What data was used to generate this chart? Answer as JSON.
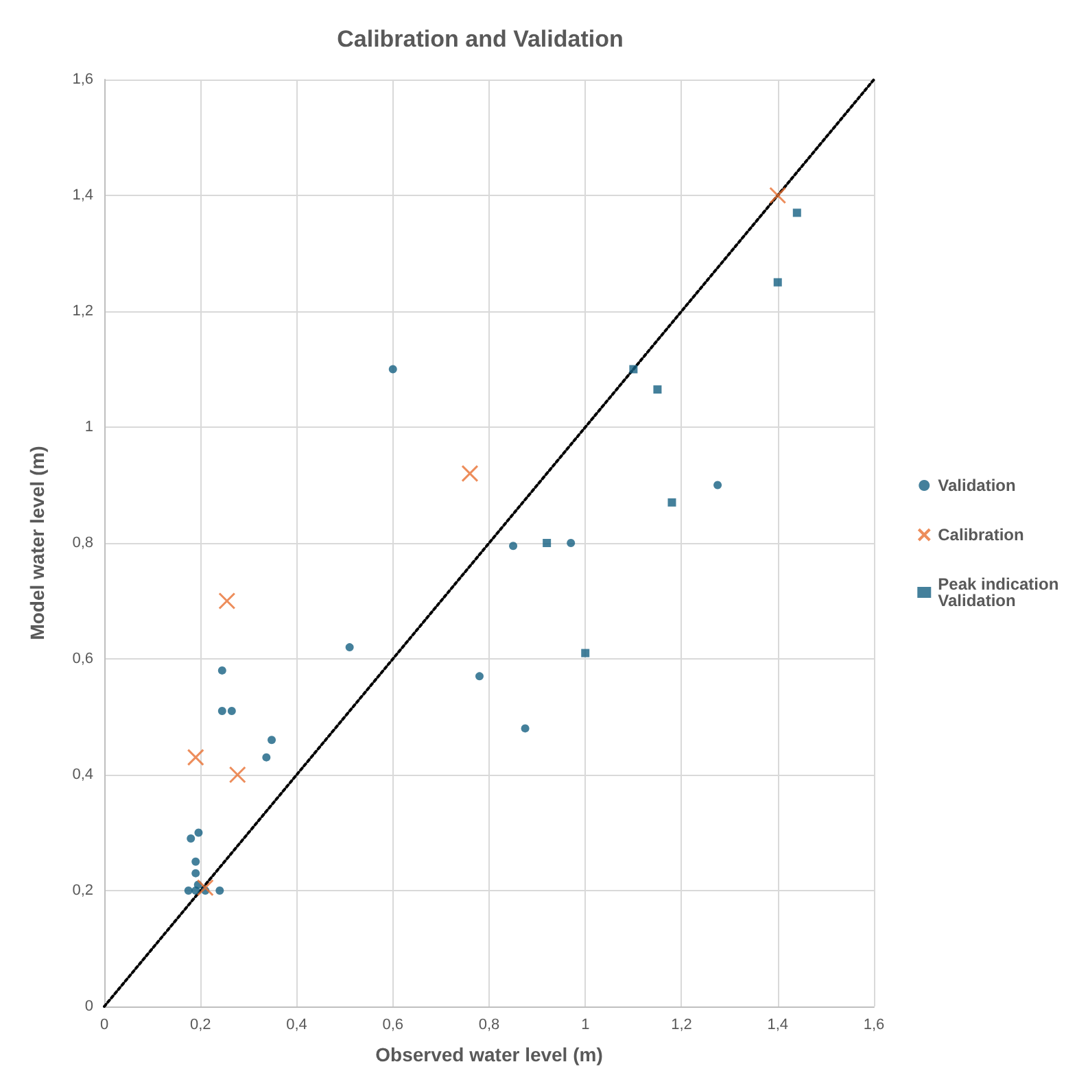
{
  "chart_data": {
    "type": "scatter",
    "title": "Calibration and Validation",
    "xlabel": "Observed water level (m)",
    "ylabel": "Model water level (m)",
    "xlim": [
      0,
      1.6
    ],
    "ylim": [
      0,
      1.6
    ],
    "xticks": [
      0,
      {
        "value": 0.2,
        "label": "0,2"
      },
      {
        "value": 0.4,
        "label": "0,4"
      },
      {
        "value": 0.6,
        "label": "0,6"
      },
      {
        "value": 0.8,
        "label": "0,8"
      },
      1,
      {
        "value": 1.2,
        "label": "1,2"
      },
      {
        "value": 1.4,
        "label": "1,4"
      },
      {
        "value": 1.6,
        "label": "1,6"
      }
    ],
    "yticks": [
      0,
      {
        "value": 0.2,
        "label": "0,2"
      },
      {
        "value": 0.4,
        "label": "0,4"
      },
      {
        "value": 0.6,
        "label": "0,6"
      },
      {
        "value": 0.8,
        "label": "0,8"
      },
      1,
      {
        "value": 1.2,
        "label": "1,2"
      },
      {
        "value": 1.4,
        "label": "1,4"
      },
      {
        "value": 1.6,
        "label": "1,6"
      }
    ],
    "grid": true,
    "legend": "right",
    "series": [
      {
        "name": "Validation",
        "color": "#156082",
        "marker": "circle",
        "x": [
          0.6,
          0.51,
          0.78,
          0.875,
          0.85,
          0.97,
          1.275,
          0.245,
          0.245,
          0.265,
          0.348,
          0.337,
          0.18,
          0.196,
          0.19,
          0.19,
          0.175,
          0.19,
          0.2,
          0.21,
          0.24,
          0.195
        ],
        "values": [
          1.1,
          0.62,
          0.57,
          0.48,
          0.795,
          0.8,
          0.9,
          0.58,
          0.51,
          0.51,
          0.46,
          0.43,
          0.29,
          0.3,
          0.25,
          0.23,
          0.2,
          0.2,
          null,
          0.2,
          0.2,
          0.21
        ]
      },
      {
        "name": "Calibration",
        "color": "#e97132",
        "marker": "cross",
        "x": [
          0.255,
          0.19,
          0.277,
          0.76,
          1.4,
          0.21
        ],
        "values": [
          0.7,
          0.43,
          0.4,
          0.92,
          1.4,
          0.205
        ]
      },
      {
        "name": "Peak indication Validation",
        "color": "#156082",
        "marker": "square",
        "x": [
          1.44,
          1.4,
          1.1,
          1.15,
          1.18,
          0.92,
          1.0
        ],
        "values": [
          1.37,
          1.25,
          1.1,
          1.065,
          0.87,
          0.8,
          0.61
        ]
      },
      {
        "type": "line",
        "color": "#000000",
        "marker": "none",
        "line_style": "dotted",
        "x": [
          0,
          1.6
        ],
        "values": [
          0,
          1.6
        ]
      }
    ]
  }
}
